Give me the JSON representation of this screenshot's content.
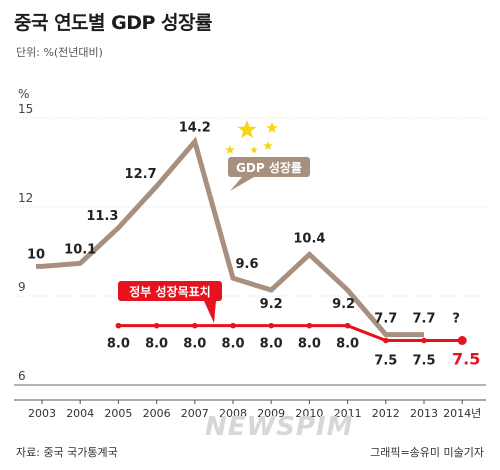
{
  "header": {
    "title": "중국 연도별 GDP 성장률",
    "unit": "단위: %(전년대비)"
  },
  "footer": {
    "source": "자료: 중국 국가통계국",
    "credit": "그래픽=송유미 미술기자"
  },
  "watermark": "NEWSPIM",
  "colors": {
    "gdp_line": "#a89080",
    "target_line": "#e8111e",
    "target_label_bg": "#e8111e",
    "gdp_label_bg": "#a89080",
    "star": "#f7d416",
    "axis": "#555555"
  },
  "chart_data": {
    "type": "line",
    "y_unit_label": "%",
    "categories": [
      "2003",
      "2004",
      "2005",
      "2006",
      "2007",
      "2008",
      "2009",
      "2010",
      "2011",
      "2012",
      "2013",
      "2014년"
    ],
    "y_ticks": [
      "15",
      "12",
      "9",
      "6"
    ],
    "ylim": [
      6,
      15
    ],
    "series": [
      {
        "name": "GDP 성장률",
        "values": [
          10,
          10.1,
          11.3,
          12.7,
          14.2,
          9.6,
          9.2,
          10.4,
          9.2,
          7.7,
          7.7,
          null
        ],
        "labels": [
          "10",
          "10.1",
          "11.3",
          "12.7",
          "14.2",
          "9.6",
          "9.2",
          "10.4",
          "9.2",
          "7.7",
          "7.7",
          "?"
        ]
      },
      {
        "name": "정부 성장목표치",
        "values": [
          8.0,
          8.0,
          8.0,
          8.0,
          8.0,
          8.0,
          8.0,
          8.0,
          8.0,
          7.5,
          7.5,
          7.5
        ],
        "labels": [
          "8.0",
          "8.0",
          "8.0",
          "8.0",
          "8.0",
          "8.0",
          "8.0",
          "8.0",
          "8.0",
          "7.5",
          "7.5",
          "7.5"
        ]
      }
    ]
  }
}
